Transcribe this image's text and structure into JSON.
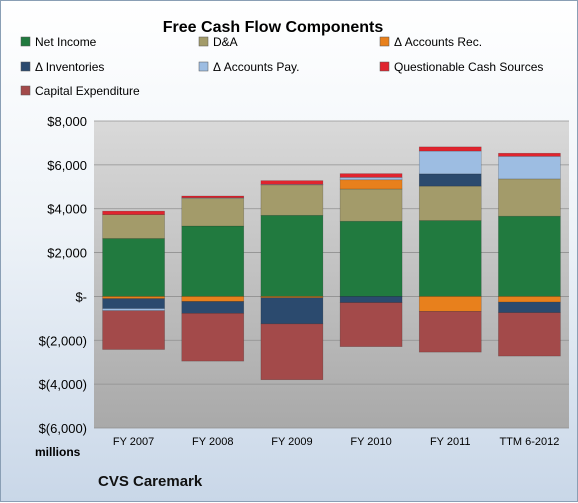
{
  "chart_data": {
    "type": "bar",
    "stacked": true,
    "title": "Free Cash Flow Components",
    "categories": [
      "FY 2007",
      "FY 2008",
      "FY 2009",
      "FY 2010",
      "FY 2011",
      "TTM 6-2012"
    ],
    "series": [
      {
        "name": "Net Income",
        "color": "#217a3f",
        "values": [
          2640,
          3210,
          3700,
          3430,
          3460,
          3660
        ]
      },
      {
        "name": "D&A",
        "color": "#a39b6a",
        "values": [
          1090,
          1270,
          1390,
          1470,
          1570,
          1700
        ]
      },
      {
        "name": "Δ Accounts Rec.",
        "color": "#e8801c",
        "values": [
          -100,
          -230,
          -60,
          420,
          -680,
          -260
        ]
      },
      {
        "name": "Δ Inventories",
        "color": "#2b4a6e",
        "values": [
          -450,
          -540,
          -1190,
          -280,
          560,
          -480
        ]
      },
      {
        "name": "Δ Accounts Pay.",
        "color": "#9dbde2",
        "values": [
          -100,
          20,
          20,
          110,
          1040,
          1030
        ]
      },
      {
        "name": "Questionable Cash Sources",
        "color": "#e0242e",
        "values": [
          160,
          80,
          170,
          170,
          190,
          140
        ]
      },
      {
        "name": "Capital Expenditure",
        "color": "#a34a4a",
        "values": [
          -1770,
          -2180,
          -2550,
          -2010,
          -1860,
          -1980
        ]
      }
    ],
    "ylim": [
      -6000,
      8000
    ],
    "yticks": [
      8000,
      6000,
      4000,
      2000,
      0,
      -2000,
      -4000,
      -6000
    ],
    "ytick_labels": [
      "$8,000",
      "$6,000",
      "$4,000",
      "$2,000",
      "$-",
      "$(2,000)",
      "$(4,000)",
      "$(6,000)"
    ],
    "ylabel": "millions",
    "legend_position": "top",
    "grid": true,
    "company": "CVS Caremark",
    "plot_background": "#c8c8c8"
  }
}
